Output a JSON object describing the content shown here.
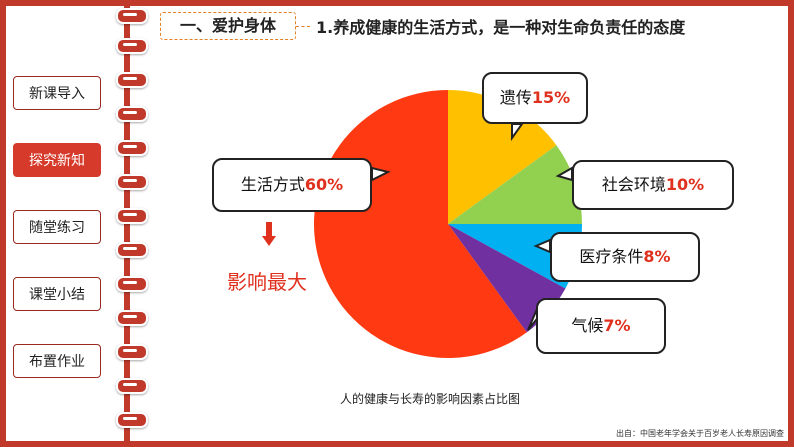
{
  "nav": {
    "items": [
      {
        "label": "新课导入",
        "active": false
      },
      {
        "label": "探究新知",
        "active": true
      },
      {
        "label": "随堂练习",
        "active": false
      },
      {
        "label": "课堂小结",
        "active": false
      },
      {
        "label": "布置作业",
        "active": false
      }
    ]
  },
  "header": {
    "section": "一、爱护身体",
    "title": "1.养成健康的生活方式，是一种对生命负责任的态度"
  },
  "colors": {
    "frame": "#c0392b",
    "accent_red": "#e0301e",
    "active_nav": "#d63a2a"
  },
  "chart_data": {
    "type": "pie",
    "title": "人的健康与长寿的影响因素占比图",
    "slices": [
      {
        "label": "遗传",
        "value": 15,
        "display": "15%",
        "color": "#ffc000"
      },
      {
        "label": "社会环境",
        "value": 10,
        "display": "10%",
        "color": "#92d050"
      },
      {
        "label": "医疗条件",
        "value": 8,
        "display": "8%",
        "color": "#00b0f0"
      },
      {
        "label": "气候",
        "value": 7,
        "display": "7%",
        "color": "#7030a0"
      },
      {
        "label": "生活方式",
        "value": 60,
        "display": "60%",
        "color": "#ff3a12"
      }
    ],
    "annotation": "影响最大",
    "source": "出自：中国老年学会关于百岁老人长寿原因调查"
  }
}
